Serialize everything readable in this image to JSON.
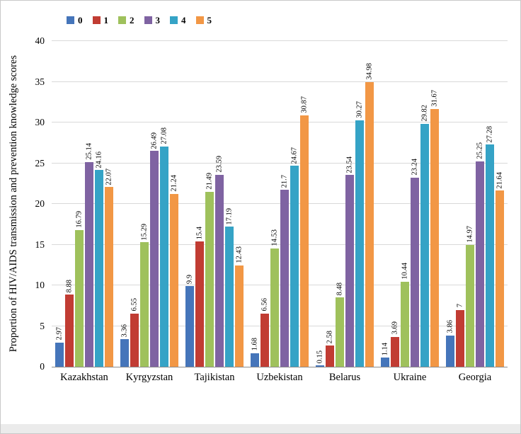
{
  "chart_data": {
    "type": "bar",
    "title": "",
    "xlabel": "",
    "ylabel": "Proportion of HIV/AIDS transmission and prevention knowledge scores",
    "ylim": [
      0,
      40
    ],
    "ytick_step": 5,
    "grid": true,
    "legend_position": "top",
    "categories": [
      "Kazakhstan",
      "Kyrgyzstan",
      "Tajikistan",
      "Uzbekistan",
      "Belarus",
      "Ukraine",
      "Georgia"
    ],
    "series": [
      {
        "name": "0",
        "color": "#4575BA",
        "values": [
          2.97,
          3.36,
          9.9,
          1.68,
          0.15,
          1.14,
          3.86
        ]
      },
      {
        "name": "1",
        "color": "#C13C33",
        "values": [
          8.88,
          6.55,
          15.4,
          6.56,
          2.58,
          3.69,
          7
        ]
      },
      {
        "name": "2",
        "color": "#9FC15C",
        "values": [
          16.79,
          15.29,
          21.49,
          14.53,
          8.48,
          10.44,
          14.97
        ]
      },
      {
        "name": "3",
        "color": "#7F63A2",
        "values": [
          25.14,
          26.49,
          23.59,
          21.7,
          23.54,
          23.24,
          25.25
        ]
      },
      {
        "name": "4",
        "color": "#35A3C6",
        "values": [
          24.16,
          27.08,
          17.19,
          24.67,
          30.27,
          29.82,
          27.28
        ]
      },
      {
        "name": "5",
        "color": "#F29745",
        "values": [
          22.07,
          21.24,
          12.43,
          30.87,
          34.98,
          31.67,
          21.64
        ]
      }
    ],
    "colors": {
      "gridline": "#d9d9d9",
      "axis_line": "#8c8c8c"
    }
  }
}
